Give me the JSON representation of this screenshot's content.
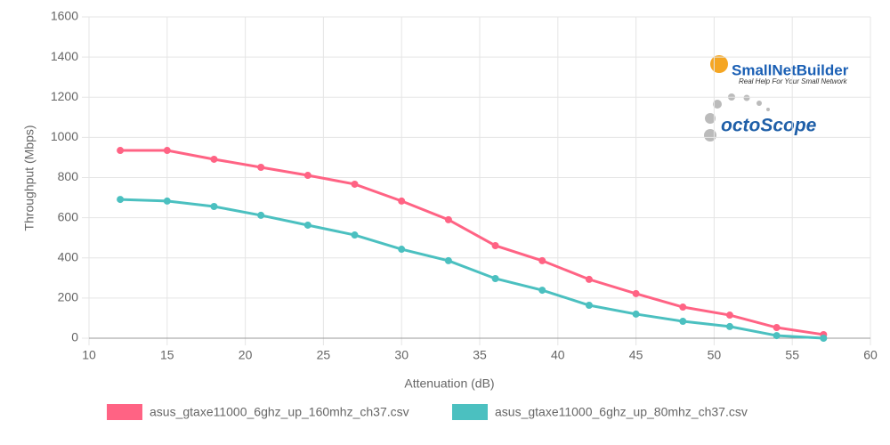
{
  "chart_data": {
    "type": "line",
    "x_label": "Attenuation (dB)",
    "y_label": "Throughput (Mbps)",
    "x": [
      12,
      15,
      18,
      21,
      24,
      27,
      30,
      33,
      36,
      39,
      42,
      45,
      48,
      51,
      54,
      57
    ],
    "series": [
      {
        "name": "asus_gtaxe11000_6ghz_up_160mhz_ch37.csv",
        "color": "#ff6384",
        "values": [
          935,
          935,
          891,
          851,
          811,
          767,
          683,
          590,
          461,
          386,
          293,
          222,
          155,
          115,
          53,
          18
        ]
      },
      {
        "name": "asus_gtaxe11000_6ghz_up_80mhz_ch37.csv",
        "color": "#4bc0c0",
        "values": [
          691,
          683,
          656,
          612,
          563,
          514,
          443,
          386,
          297,
          239,
          164,
          120,
          84,
          58,
          13,
          0
        ]
      }
    ],
    "xlim": [
      10,
      60
    ],
    "xticks": [
      10,
      15,
      20,
      25,
      30,
      35,
      40,
      45,
      50,
      55,
      60
    ],
    "ylim": [
      0,
      1600
    ],
    "yticks": [
      0,
      200,
      400,
      600,
      800,
      1000,
      1200,
      1400,
      1600
    ],
    "grid": true,
    "legend": "bottom",
    "annotations": [
      "SmallNetBuilder",
      "Real Help For Your Small Network",
      "octoScope"
    ]
  }
}
